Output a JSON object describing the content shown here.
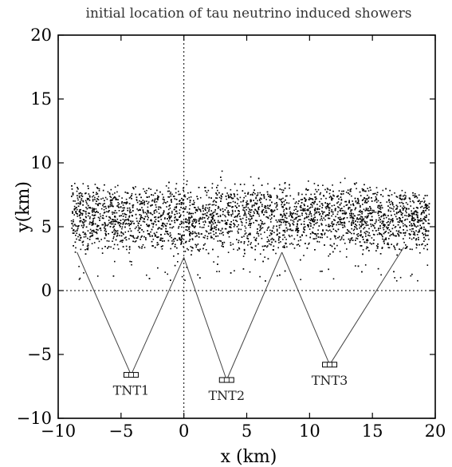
{
  "chart_data": {
    "type": "scatter",
    "title": "initial location of tau neutrino induced showers",
    "xlabel": "x (km)",
    "ylabel": "y(km)",
    "xlim": [
      -10,
      20
    ],
    "ylim": [
      -10,
      20
    ],
    "xticks": [
      "−10",
      "−5",
      "0",
      "5",
      "10",
      "15",
      "20"
    ],
    "yticks": [
      "−10",
      "−5",
      "0",
      "5",
      "10",
      "15",
      "20"
    ],
    "xtick_values": [
      -10,
      -5,
      0,
      5,
      10,
      15,
      20
    ],
    "ytick_values": [
      -10,
      -5,
      0,
      5,
      10,
      15,
      20
    ],
    "grid": false,
    "reference_lines": {
      "x0": true,
      "y0": true,
      "style": "dotted"
    },
    "shower_region": {
      "description_points": "dense cloud of shower starting points",
      "x_range": [
        -9,
        19.5
      ],
      "core_y_range": [
        4,
        8
      ],
      "max_y_profile": [
        {
          "x": -9,
          "y": 8.5
        },
        {
          "x": -5,
          "y": 8.3
        },
        {
          "x": 0,
          "y": 8.6
        },
        {
          "x": 2,
          "y": 9.8
        },
        {
          "x": 5,
          "y": 9.8
        },
        {
          "x": 8,
          "y": 10.5
        },
        {
          "x": 11,
          "y": 10.0
        },
        {
          "x": 14,
          "y": 8.5
        },
        {
          "x": 17,
          "y": 8.0
        },
        {
          "x": 19.5,
          "y": 7.5
        }
      ]
    },
    "detectors": [
      {
        "label": "TNT1",
        "x": -4.2,
        "y": -6.6,
        "fov_apexes": [
          [
            -8.5,
            3.0
          ],
          [
            0,
            2.6
          ]
        ]
      },
      {
        "label": "TNT2",
        "x": 3.4,
        "y": -7.0,
        "fov_apexes": [
          [
            0,
            2.6
          ],
          [
            7.8,
            3.0
          ]
        ]
      },
      {
        "label": "TNT3",
        "x": 11.6,
        "y": -5.8,
        "fov_apexes": [
          [
            7.8,
            3.0
          ],
          [
            17.5,
            3.4
          ]
        ]
      }
    ],
    "colors": {
      "points": "#000000",
      "lines": "#444444",
      "background": "#ffffff"
    }
  }
}
